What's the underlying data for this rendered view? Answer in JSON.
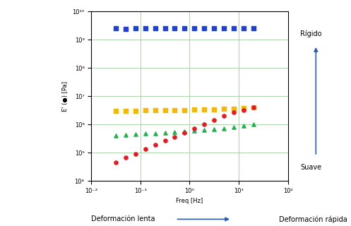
{
  "chart_data": {
    "type": "scatter",
    "x_label": "Freq [Hz]",
    "y_label": "E' (●) [Pa]",
    "log": true,
    "grid": true,
    "xlim": [
      0.01,
      100
    ],
    "ylim": [
      10000,
      10000000000
    ],
    "xticks": [
      {
        "value": 0.01,
        "label": "10⁻²"
      },
      {
        "value": 0.1,
        "label": "10⁻¹"
      },
      {
        "value": 1,
        "label": "10⁰"
      },
      {
        "value": 10,
        "label": "10¹"
      },
      {
        "value": 100,
        "label": "10²"
      }
    ],
    "yticks": [
      {
        "value": 10000,
        "label": "10⁴"
      },
      {
        "value": 100000,
        "label": "10⁵"
      },
      {
        "value": 1000000,
        "label": "10⁶"
      },
      {
        "value": 10000000,
        "label": "10⁷"
      },
      {
        "value": 100000000,
        "label": "10⁸"
      },
      {
        "value": 1000000000,
        "label": "10⁹"
      },
      {
        "value": 10000000000,
        "label": "10¹⁰"
      }
    ],
    "x": [
      0.0316,
      0.05,
      0.079,
      0.126,
      0.2,
      0.316,
      0.5,
      0.79,
      1.26,
      2,
      3.16,
      5,
      7.9,
      12.6,
      20
    ],
    "series": [
      {
        "color": "#1f3fd8",
        "marker": "square",
        "values": [
          2500000000,
          2400000000,
          2500000000,
          2500000000,
          2450000000,
          2500000000,
          2500000000,
          2500000000,
          2500000000,
          2450000000,
          2500000000,
          2500000000,
          2500000000,
          2500000000,
          2500000000
        ]
      },
      {
        "color": "#f5b800",
        "marker": "square",
        "values": [
          3000000,
          3000000,
          3050000,
          3100000,
          3100000,
          3150000,
          3200000,
          3250000,
          3300000,
          3350000,
          3400000,
          3500000,
          3600000,
          3700000,
          4000000
        ]
      },
      {
        "color": "#22b14c",
        "marker": "triangle",
        "values": [
          400000,
          420000,
          440000,
          460000,
          480000,
          500000,
          520000,
          550000,
          580000,
          620000,
          660000,
          720000,
          800000,
          900000,
          1000000
        ]
      },
      {
        "color": "#e8191e",
        "marker": "circle",
        "values": [
          45000,
          65000,
          90000,
          130000,
          190000,
          270000,
          360000,
          500000,
          700000,
          1000000,
          1400000,
          2000000,
          2600000,
          3200000,
          4000000
        ]
      }
    ],
    "annotations": {
      "top": "Rígido",
      "bottom": "Suave",
      "left": "Deformación lenta",
      "right": "Deformación rápida"
    }
  }
}
